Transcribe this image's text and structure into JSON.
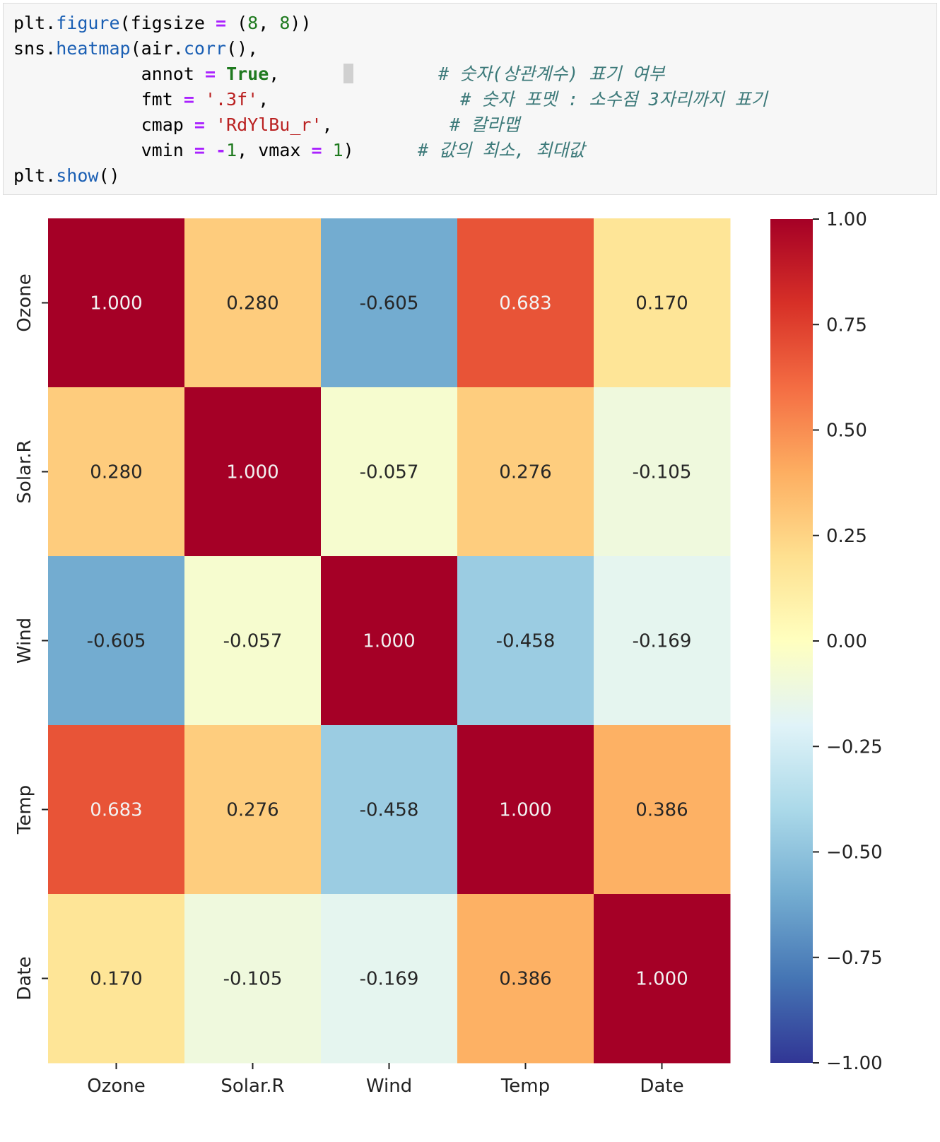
{
  "code": {
    "lines": [
      [
        [
          "plt.",
          ""
        ],
        [
          "figure",
          "fn"
        ],
        [
          "(figsize ",
          ""
        ],
        [
          "=",
          "op"
        ],
        [
          " (",
          ""
        ],
        [
          "8",
          "num"
        ],
        [
          ", ",
          ""
        ],
        [
          "8",
          "num"
        ],
        [
          "))",
          ""
        ]
      ],
      [
        [
          "sns.",
          ""
        ],
        [
          "heatmap",
          "fn"
        ],
        [
          "(air.",
          ""
        ],
        [
          "corr",
          "fn"
        ],
        [
          "(),",
          ""
        ]
      ],
      [
        [
          "            annot ",
          ""
        ],
        [
          "=",
          "op"
        ],
        [
          " ",
          ""
        ],
        [
          "True",
          "kw"
        ],
        [
          ",",
          ""
        ],
        [
          "      ",
          ""
        ],
        [
          "",
          "cursor"
        ],
        [
          "        ",
          ""
        ],
        [
          "# 숫자(상관계수) 표기 여부",
          "c"
        ]
      ],
      [
        [
          "            fmt ",
          ""
        ],
        [
          "=",
          "op"
        ],
        [
          " ",
          ""
        ],
        [
          "'.3f'",
          "str"
        ],
        [
          ",                  ",
          ""
        ],
        [
          "# 숫자 포멧 : 소수점 3자리까지 표기",
          "c"
        ]
      ],
      [
        [
          "            cmap ",
          ""
        ],
        [
          "=",
          "op"
        ],
        [
          " ",
          ""
        ],
        [
          "'RdYlBu_r'",
          "str"
        ],
        [
          ",           ",
          ""
        ],
        [
          "# 칼라맵",
          "c"
        ]
      ],
      [
        [
          "            vmin ",
          ""
        ],
        [
          "=",
          "op"
        ],
        [
          " ",
          ""
        ],
        [
          "-",
          "op"
        ],
        [
          "1",
          "num"
        ],
        [
          ", vmax ",
          ""
        ],
        [
          "=",
          "op"
        ],
        [
          " ",
          ""
        ],
        [
          "1",
          "num"
        ],
        [
          ")      ",
          ""
        ],
        [
          "# 값의 최소, 최대값",
          "c"
        ]
      ],
      [
        [
          "plt.",
          ""
        ],
        [
          "show",
          "fn"
        ],
        [
          "()",
          ""
        ]
      ]
    ]
  },
  "chart_data": {
    "type": "heatmap",
    "x_labels": [
      "Ozone",
      "Solar.R",
      "Wind",
      "Temp",
      "Date"
    ],
    "y_labels": [
      "Ozone",
      "Solar.R",
      "Wind",
      "Temp",
      "Date"
    ],
    "values": [
      [
        1.0,
        0.28,
        -0.605,
        0.683,
        0.17
      ],
      [
        0.28,
        1.0,
        -0.057,
        0.276,
        -0.105
      ],
      [
        -0.605,
        -0.057,
        1.0,
        -0.458,
        -0.169
      ],
      [
        0.683,
        0.276,
        -0.458,
        1.0,
        0.386
      ],
      [
        0.17,
        -0.105,
        -0.169,
        0.386,
        1.0
      ]
    ],
    "value_labels": [
      [
        "1.000",
        "0.280",
        "-0.605",
        "0.683",
        "0.170"
      ],
      [
        "0.280",
        "1.000",
        "-0.057",
        "0.276",
        "-0.105"
      ],
      [
        "-0.605",
        "-0.057",
        "1.000",
        "-0.458",
        "-0.169"
      ],
      [
        "0.683",
        "0.276",
        "-0.458",
        "1.000",
        "0.386"
      ],
      [
        "0.170",
        "-0.105",
        "-0.169",
        "0.386",
        "1.000"
      ]
    ],
    "colormap": "RdYlBu_r",
    "vmin": -1,
    "vmax": 1,
    "colorbar_ticks": [
      1.0,
      0.75,
      0.5,
      0.25,
      0.0,
      -0.25,
      -0.5,
      -0.75,
      -1.0
    ],
    "colorbar_tick_labels": [
      "1.00",
      "0.75",
      "0.50",
      "0.25",
      "0.00",
      "−0.25",
      "−0.50",
      "−0.75",
      "−1.00"
    ],
    "colormap_stops": [
      "#313695",
      "#4575b4",
      "#74add1",
      "#abd9e9",
      "#e0f3f8",
      "#ffffbf",
      "#fee090",
      "#fdae61",
      "#f46d43",
      "#d73027",
      "#a50026"
    ]
  }
}
